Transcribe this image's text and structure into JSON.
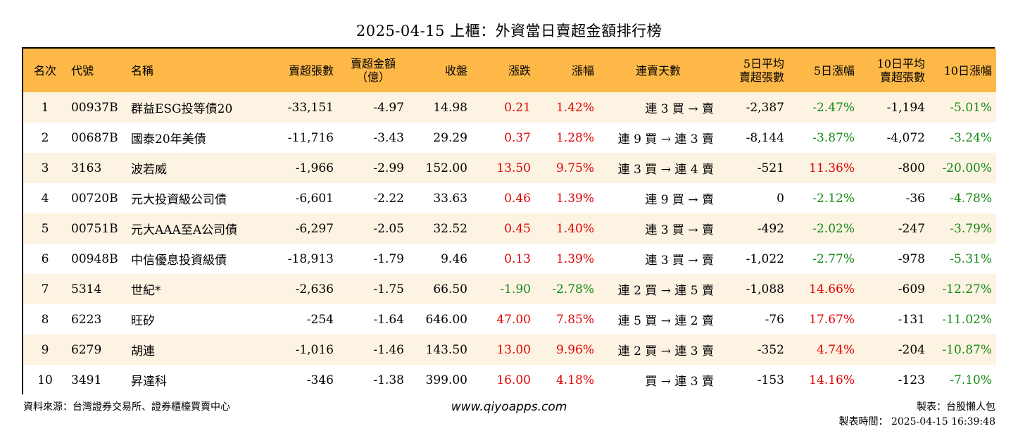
{
  "title": "2025-04-15 上櫃：外資當日賣超金額排行榜",
  "headers": [
    {
      "l1": "名次",
      "l2": ""
    },
    {
      "l1": "代號",
      "l2": ""
    },
    {
      "l1": "名稱",
      "l2": ""
    },
    {
      "l1": "賣超張數",
      "l2": ""
    },
    {
      "l1": "賣超金額",
      "l2": "（億）"
    },
    {
      "l1": "收盤",
      "l2": ""
    },
    {
      "l1": "漲跌",
      "l2": ""
    },
    {
      "l1": "漲幅",
      "l2": ""
    },
    {
      "l1": "連賣天數",
      "l2": ""
    },
    {
      "l1": "5日平均",
      "l2": "賣超張數"
    },
    {
      "l1": "5日漲幅",
      "l2": ""
    },
    {
      "l1": "10日平均",
      "l2": "賣超張數"
    },
    {
      "l1": "10日漲幅",
      "l2": ""
    }
  ],
  "rows": [
    [
      "1",
      "00937B",
      "群益ESG投等債20",
      "-33,151",
      "-4.97",
      "14.98",
      "0.21",
      "1.42%",
      "連 3 買 → 賣",
      "-2,387",
      "-2.47%",
      "-1,194",
      "-5.01%"
    ],
    [
      "2",
      "00687B",
      "國泰20年美債",
      "-11,716",
      "-3.43",
      "29.29",
      "0.37",
      "1.28%",
      "連 9 買 → 連 3 賣",
      "-8,144",
      "-3.87%",
      "-4,072",
      "-3.24%"
    ],
    [
      "3",
      "3163",
      "波若威",
      "-1,966",
      "-2.99",
      "152.00",
      "13.50",
      "9.75%",
      "連 3 買 → 連 4 賣",
      "-521",
      "11.36%",
      "-800",
      "-20.00%"
    ],
    [
      "4",
      "00720B",
      "元大投資級公司債",
      "-6,601",
      "-2.22",
      "33.63",
      "0.46",
      "1.39%",
      "連 9 買 → 賣",
      "0",
      "-2.12%",
      "-36",
      "-4.78%"
    ],
    [
      "5",
      "00751B",
      "元大AAA至A公司債",
      "-6,297",
      "-2.05",
      "32.52",
      "0.45",
      "1.40%",
      "連 3 買 → 賣",
      "-492",
      "-2.02%",
      "-247",
      "-3.79%"
    ],
    [
      "6",
      "00948B",
      "中信優息投資級債",
      "-18,913",
      "-1.79",
      "9.46",
      "0.13",
      "1.39%",
      "連 3 買 → 賣",
      "-1,022",
      "-2.77%",
      "-978",
      "-5.31%"
    ],
    [
      "7",
      "5314",
      "世紀*",
      "-2,636",
      "-1.75",
      "66.50",
      "-1.90",
      "-2.78%",
      "連 2 買 → 連 5 賣",
      "-1,088",
      "14.66%",
      "-609",
      "-12.27%"
    ],
    [
      "8",
      "6223",
      "旺矽",
      "-254",
      "-1.64",
      "646.00",
      "47.00",
      "7.85%",
      "連 5 買 → 連 2 賣",
      "-76",
      "17.67%",
      "-131",
      "-11.02%"
    ],
    [
      "9",
      "6279",
      "胡連",
      "-1,016",
      "-1.46",
      "143.50",
      "13.00",
      "9.96%",
      "連 2 買 → 連 3 賣",
      "-352",
      "4.74%",
      "-204",
      "-10.87%"
    ],
    [
      "10",
      "3491",
      "昇達科",
      "-346",
      "-1.38",
      "399.00",
      "16.00",
      "4.18%",
      "買 → 連 3 賣",
      "-153",
      "14.16%",
      "-123",
      "-7.10%"
    ]
  ],
  "footer": {
    "source": "資料來源：台灣證券交易所、證券櫃檯買賣中心",
    "website": "www.qiyoapps.com",
    "maker": "製表：台股懶人包",
    "time": "製表時間： 2025-04-15 16:39:48"
  },
  "colors": {
    "header_bg": "#fdb848",
    "stripe_bg": "#fdf3e2",
    "up": "#e00000",
    "down": "#118811"
  }
}
